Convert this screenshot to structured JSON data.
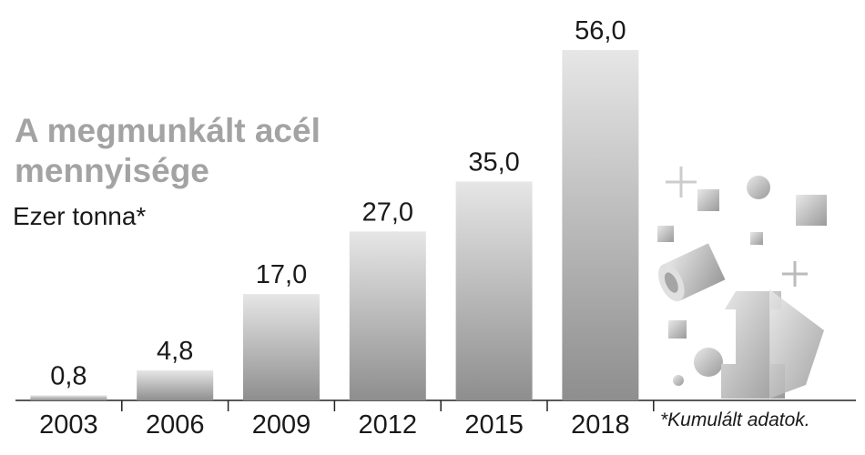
{
  "chart_data": {
    "type": "bar",
    "title": "A megmunkált acél mennyisége",
    "subtitle": "Ezer tonna*",
    "note": "*Kumulált adatok.",
    "categories": [
      "2003",
      "2006",
      "2009",
      "2012",
      "2015",
      "2018"
    ],
    "values": [
      0.8,
      4.8,
      17.0,
      27.0,
      35.0,
      56.0
    ],
    "value_labels": [
      "0,8",
      "4,8",
      "17,0",
      "27,0",
      "35,0",
      "56,0"
    ],
    "color": "#8e8e8e"
  }
}
